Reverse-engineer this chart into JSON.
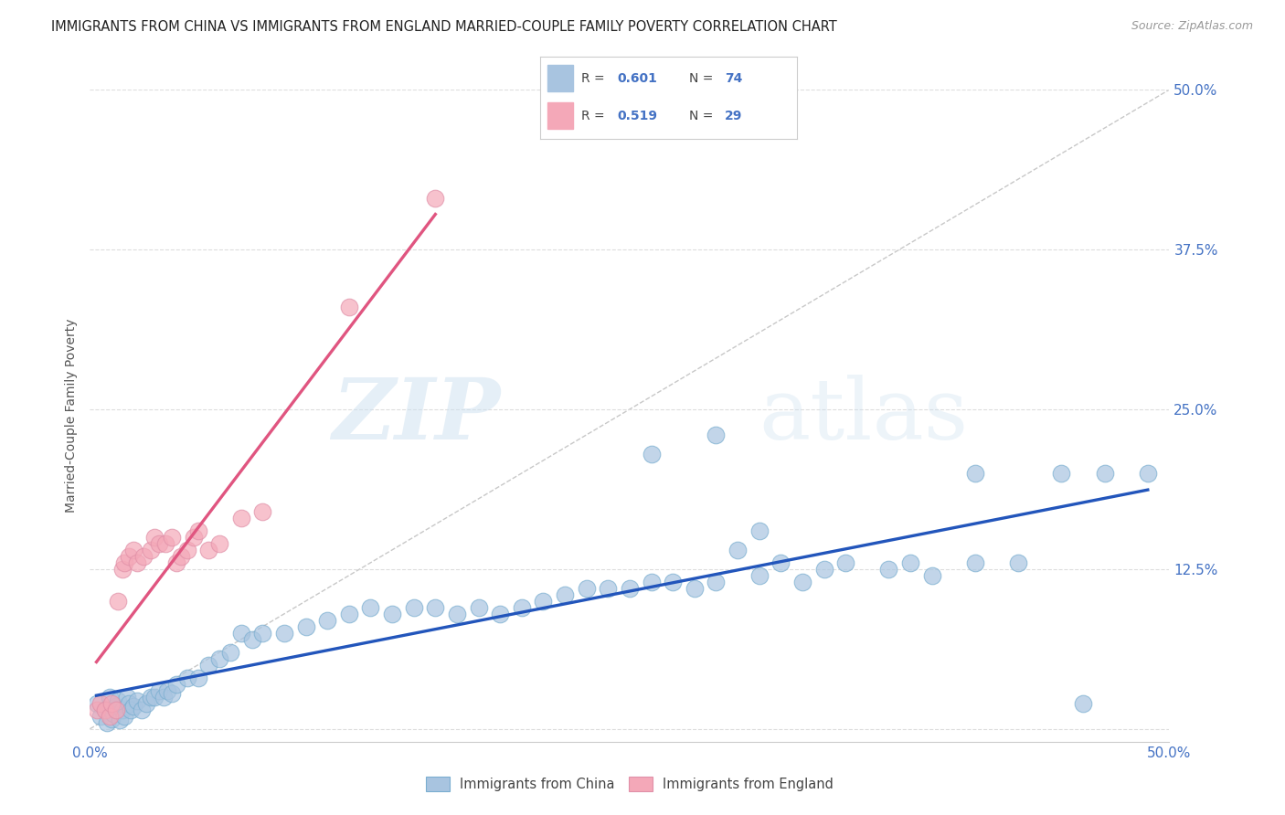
{
  "title": "IMMIGRANTS FROM CHINA VS IMMIGRANTS FROM ENGLAND MARRIED-COUPLE FAMILY POVERTY CORRELATION CHART",
  "source": "Source: ZipAtlas.com",
  "ylabel": "Married-Couple Family Poverty",
  "yticks": [
    0.0,
    0.125,
    0.25,
    0.375,
    0.5
  ],
  "ytick_labels": [
    "",
    "12.5%",
    "25.0%",
    "37.5%",
    "50.0%"
  ],
  "xlim": [
    0.0,
    0.5
  ],
  "ylim": [
    -0.01,
    0.5
  ],
  "china_color": "#a8c4e0",
  "england_color": "#f4a8b8",
  "china_line_color": "#2255bb",
  "england_line_color": "#e05580",
  "china_R": 0.601,
  "china_N": 74,
  "england_R": 0.519,
  "england_N": 29,
  "legend_china_label": "Immigrants from China",
  "legend_england_label": "Immigrants from England",
  "watermark_zip": "ZIP",
  "watermark_atlas": "atlas",
  "background_color": "#ffffff",
  "grid_color": "#dddddd",
  "title_color": "#222222",
  "axis_label_color": "#4472c4",
  "china_scatter_x": [
    0.003,
    0.005,
    0.007,
    0.008,
    0.009,
    0.01,
    0.011,
    0.012,
    0.013,
    0.014,
    0.015,
    0.016,
    0.017,
    0.018,
    0.019,
    0.02,
    0.022,
    0.024,
    0.026,
    0.028,
    0.03,
    0.032,
    0.034,
    0.036,
    0.038,
    0.04,
    0.045,
    0.05,
    0.055,
    0.06,
    0.065,
    0.07,
    0.075,
    0.08,
    0.09,
    0.1,
    0.11,
    0.12,
    0.13,
    0.14,
    0.15,
    0.16,
    0.17,
    0.18,
    0.19,
    0.2,
    0.21,
    0.22,
    0.23,
    0.24,
    0.25,
    0.26,
    0.27,
    0.28,
    0.29,
    0.3,
    0.31,
    0.32,
    0.33,
    0.34,
    0.35,
    0.37,
    0.39,
    0.41,
    0.43,
    0.45,
    0.47,
    0.49,
    0.38,
    0.29,
    0.26,
    0.31,
    0.41,
    0.46
  ],
  "china_scatter_y": [
    0.02,
    0.01,
    0.015,
    0.005,
    0.025,
    0.008,
    0.012,
    0.018,
    0.022,
    0.007,
    0.015,
    0.01,
    0.025,
    0.02,
    0.015,
    0.018,
    0.022,
    0.015,
    0.02,
    0.025,
    0.025,
    0.03,
    0.025,
    0.03,
    0.028,
    0.035,
    0.04,
    0.04,
    0.05,
    0.055,
    0.06,
    0.075,
    0.07,
    0.075,
    0.075,
    0.08,
    0.085,
    0.09,
    0.095,
    0.09,
    0.095,
    0.095,
    0.09,
    0.095,
    0.09,
    0.095,
    0.1,
    0.105,
    0.11,
    0.11,
    0.11,
    0.115,
    0.115,
    0.11,
    0.115,
    0.14,
    0.12,
    0.13,
    0.115,
    0.125,
    0.13,
    0.125,
    0.12,
    0.13,
    0.13,
    0.2,
    0.2,
    0.2,
    0.13,
    0.23,
    0.215,
    0.155,
    0.2,
    0.02
  ],
  "england_scatter_x": [
    0.003,
    0.005,
    0.007,
    0.009,
    0.01,
    0.012,
    0.013,
    0.015,
    0.016,
    0.018,
    0.02,
    0.022,
    0.025,
    0.028,
    0.03,
    0.032,
    0.035,
    0.038,
    0.04,
    0.042,
    0.045,
    0.048,
    0.05,
    0.055,
    0.06,
    0.07,
    0.08,
    0.12,
    0.16
  ],
  "england_scatter_y": [
    0.015,
    0.02,
    0.015,
    0.01,
    0.02,
    0.015,
    0.1,
    0.125,
    0.13,
    0.135,
    0.14,
    0.13,
    0.135,
    0.14,
    0.15,
    0.145,
    0.145,
    0.15,
    0.13,
    0.135,
    0.14,
    0.15,
    0.155,
    0.14,
    0.145,
    0.165,
    0.17,
    0.33,
    0.415
  ]
}
